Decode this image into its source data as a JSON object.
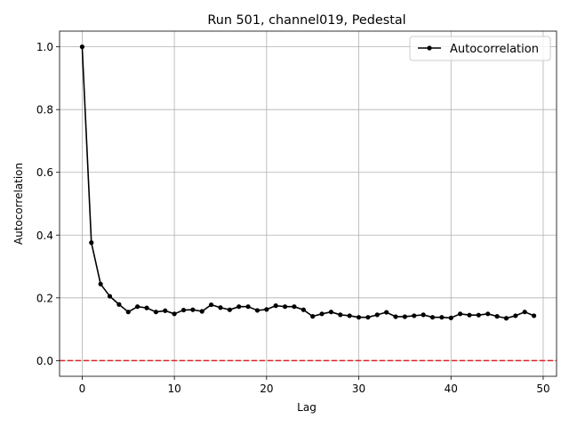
{
  "chart_data": {
    "type": "line",
    "title": "Run 501, channel019, Pedestal",
    "xlabel": "Lag",
    "ylabel": "Autocorrelation",
    "xlim": [
      -2.45,
      51.45
    ],
    "ylim": [
      -0.05,
      1.05
    ],
    "xticks": [
      0,
      10,
      20,
      30,
      40,
      50
    ],
    "yticks": [
      0.0,
      0.2,
      0.4,
      0.6,
      0.8,
      1.0
    ],
    "xtick_labels": [
      "0",
      "10",
      "20",
      "30",
      "40",
      "50"
    ],
    "ytick_labels": [
      "0.0",
      "0.2",
      "0.4",
      "0.6",
      "0.8",
      "1.0"
    ],
    "grid": true,
    "legend_position": "top-right",
    "series": [
      {
        "name": "Autocorrelation",
        "color": "#000000",
        "marker": "circle",
        "x": [
          0,
          1,
          2,
          3,
          4,
          5,
          6,
          7,
          8,
          9,
          10,
          11,
          12,
          13,
          14,
          15,
          16,
          17,
          18,
          19,
          20,
          21,
          22,
          23,
          24,
          25,
          26,
          27,
          28,
          29,
          30,
          31,
          32,
          33,
          34,
          35,
          36,
          37,
          38,
          39,
          40,
          41,
          42,
          43,
          44,
          45,
          46,
          47,
          48,
          49
        ],
        "y": [
          1.0,
          0.376,
          0.244,
          0.205,
          0.179,
          0.155,
          0.172,
          0.168,
          0.155,
          0.159,
          0.149,
          0.161,
          0.162,
          0.157,
          0.178,
          0.169,
          0.162,
          0.172,
          0.172,
          0.16,
          0.163,
          0.175,
          0.172,
          0.172,
          0.162,
          0.141,
          0.149,
          0.155,
          0.146,
          0.143,
          0.138,
          0.138,
          0.146,
          0.154,
          0.14,
          0.14,
          0.143,
          0.146,
          0.138,
          0.138,
          0.136,
          0.149,
          0.145,
          0.145,
          0.149,
          0.141,
          0.135,
          0.143,
          0.155,
          0.143
        ]
      }
    ],
    "reference_line": {
      "orientation": "horizontal",
      "y": 0.0,
      "color": "#d62728",
      "style": "dashed"
    }
  }
}
